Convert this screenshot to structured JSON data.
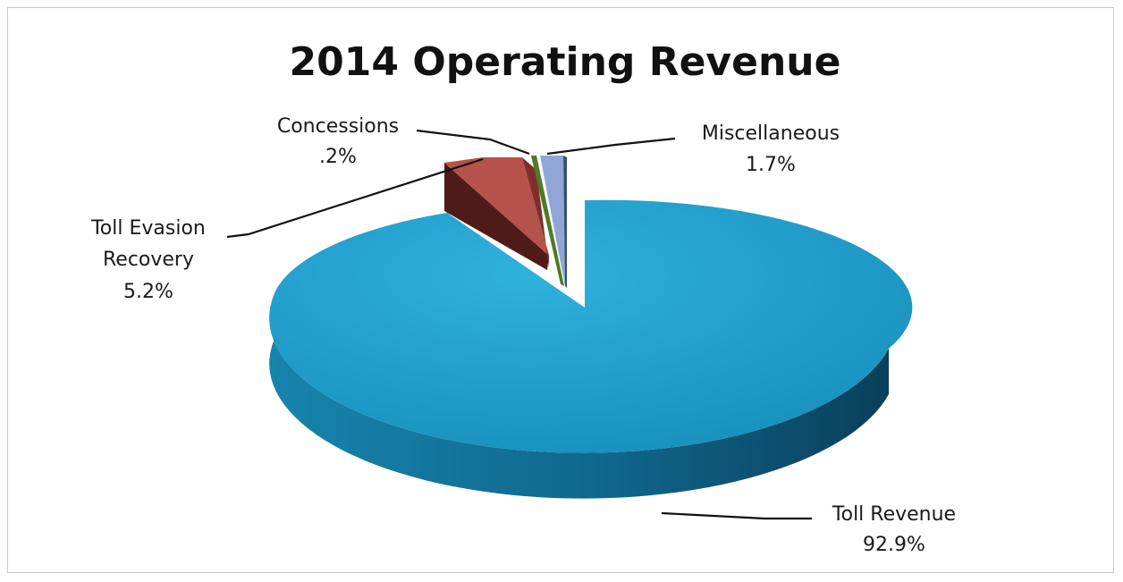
{
  "chart_data": {
    "type": "pie",
    "title": "2014 Operating Revenue",
    "slices": [
      {
        "label_lines": [
          "Toll Revenue"
        ],
        "percent_label": "92.9%",
        "value": 92.9,
        "color": "#1f9cc8",
        "dark": "#0b5272"
      },
      {
        "label_lines": [
          "Toll Evasion",
          "Recovery"
        ],
        "percent_label": "5.2%",
        "value": 5.2,
        "color": "#b5524b",
        "dark": "#5a1f1b"
      },
      {
        "label_lines": [
          "Concessions"
        ],
        "percent_label": ".2%",
        "value": 0.2,
        "color": "#76a03f",
        "dark": "#2f4a12"
      },
      {
        "label_lines": [
          "Miscellaneous"
        ],
        "percent_label": "1.7%",
        "value": 1.7,
        "color": "#8fa6d6",
        "dark": "#4a5f8c"
      }
    ],
    "style": "3D exploded pie"
  }
}
